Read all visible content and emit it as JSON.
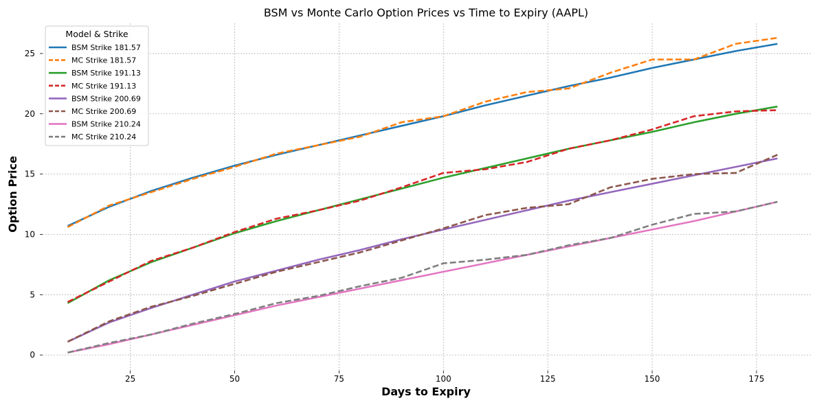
{
  "chart_data": {
    "type": "line",
    "title": "BSM vs Monte Carlo Option Prices vs Time to Expiry (AAPL)",
    "xlabel": "Days to Expiry",
    "ylabel": "Option Price",
    "xlim": [
      4,
      188
    ],
    "ylim": [
      -1.3,
      27.5
    ],
    "xticks": [
      25,
      50,
      75,
      100,
      125,
      150,
      175
    ],
    "yticks": [
      0,
      5,
      10,
      15,
      20,
      25
    ],
    "grid": true,
    "legend_title": "Model & Strike",
    "legend_position": "top-left",
    "x": [
      10,
      20,
      30,
      40,
      50,
      60,
      70,
      80,
      90,
      100,
      110,
      120,
      130,
      140,
      150,
      160,
      170,
      180
    ],
    "series": [
      {
        "name": "BSM Strike 181.57",
        "style": "solid",
        "color": "#1f77b4",
        "values": [
          10.7,
          12.3,
          13.6,
          14.7,
          15.7,
          16.6,
          17.4,
          18.2,
          19.0,
          19.8,
          20.7,
          21.5,
          22.3,
          23.0,
          23.8,
          24.5,
          25.2,
          25.8
        ]
      },
      {
        "name": "MC Strike 181.57",
        "style": "dashed",
        "color": "#ff7f0e",
        "values": [
          10.6,
          12.4,
          13.5,
          14.6,
          15.6,
          16.7,
          17.4,
          18.1,
          19.3,
          19.8,
          21.0,
          21.8,
          22.1,
          23.4,
          24.5,
          24.5,
          25.8,
          26.3
        ]
      },
      {
        "name": "BSM Strike 191.13",
        "style": "solid",
        "color": "#2ca02c",
        "values": [
          4.3,
          6.2,
          7.7,
          8.9,
          10.1,
          11.1,
          12.0,
          12.9,
          13.8,
          14.7,
          15.5,
          16.3,
          17.1,
          17.8,
          18.5,
          19.3,
          20.0,
          20.6
        ]
      },
      {
        "name": "MC Strike 191.13",
        "style": "dashed",
        "color": "#d62728",
        "values": [
          4.4,
          6.1,
          7.8,
          8.9,
          10.2,
          11.3,
          12.0,
          12.8,
          13.9,
          15.1,
          15.4,
          16.0,
          17.1,
          17.8,
          18.7,
          19.8,
          20.2,
          20.3
        ]
      },
      {
        "name": "BSM Strike 200.69",
        "style": "solid",
        "color": "#9467bd",
        "values": [
          1.1,
          2.7,
          3.9,
          5.0,
          6.1,
          7.0,
          7.9,
          8.7,
          9.6,
          10.4,
          11.2,
          12.0,
          12.8,
          13.5,
          14.2,
          14.9,
          15.6,
          16.3
        ]
      },
      {
        "name": "MC Strike 200.69",
        "style": "dashed",
        "color": "#8c564b",
        "values": [
          1.1,
          2.8,
          4.0,
          4.9,
          5.9,
          6.9,
          7.7,
          8.5,
          9.5,
          10.5,
          11.6,
          12.2,
          12.5,
          13.9,
          14.6,
          15.0,
          15.1,
          16.6
        ]
      },
      {
        "name": "BSM Strike 210.24",
        "style": "solid",
        "color": "#e377c2",
        "values": [
          0.2,
          0.9,
          1.7,
          2.5,
          3.3,
          4.1,
          4.8,
          5.5,
          6.2,
          6.9,
          7.6,
          8.3,
          9.0,
          9.7,
          10.4,
          11.1,
          11.9,
          12.7
        ]
      },
      {
        "name": "MC Strike 210.24",
        "style": "dashed",
        "color": "#7f7f7f",
        "values": [
          0.2,
          1.0,
          1.7,
          2.6,
          3.4,
          4.3,
          4.9,
          5.7,
          6.4,
          7.6,
          7.9,
          8.3,
          9.1,
          9.7,
          10.8,
          11.7,
          11.9,
          12.7
        ]
      }
    ]
  }
}
